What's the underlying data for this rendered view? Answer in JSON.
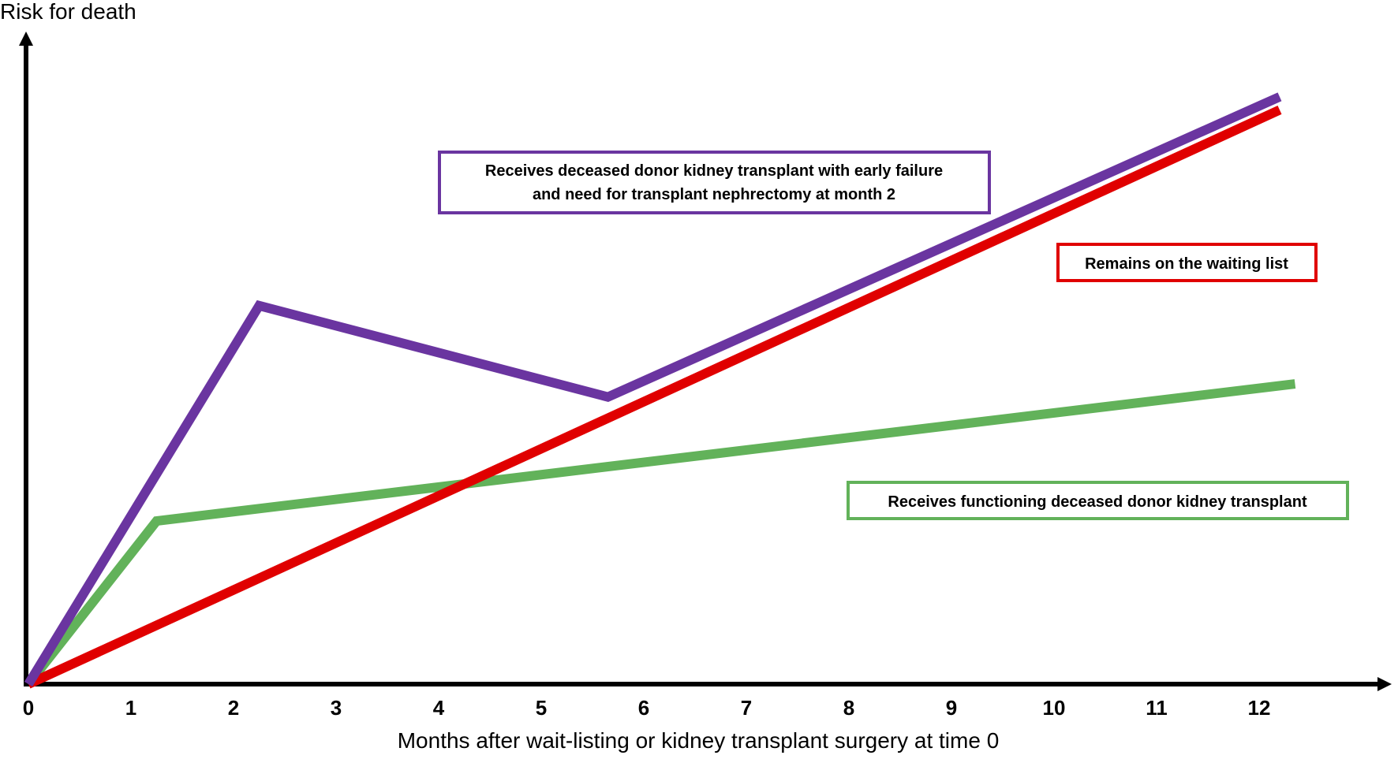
{
  "chart_data": {
    "type": "line",
    "title": "",
    "xlabel": "Months after wait-listing or kidney transplant surgery at time 0",
    "ylabel": "Risk for death",
    "xlim": [
      0,
      13
    ],
    "ylim": [
      0,
      100
    ],
    "x_ticks": [
      "0",
      "1",
      "2",
      "3",
      "4",
      "5",
      "6",
      "7",
      "8",
      "9",
      "10",
      "11",
      "12"
    ],
    "grid": false,
    "series": [
      {
        "name": "Receives deceased donor kidney transplant with early failure and need for transplant nephrectomy at month 2",
        "color": "#6a35a0",
        "points": [
          [
            0,
            0
          ],
          [
            2.25,
            58
          ],
          [
            5.65,
            44
          ],
          [
            12.2,
            90
          ]
        ]
      },
      {
        "name": "Remains on the waiting list",
        "color": "#e00000",
        "points": [
          [
            0,
            0
          ],
          [
            12.2,
            88
          ]
        ]
      },
      {
        "name": "Receives functioning deceased donor kidney transplant",
        "color": "#62b25a",
        "points": [
          [
            0,
            0
          ],
          [
            1.25,
            25
          ],
          [
            12.35,
            46
          ]
        ]
      }
    ],
    "annotations": [
      {
        "text_lines": [
          "Receives deceased donor kidney transplant with early failure",
          "and need for transplant nephrectomy at month 2"
        ],
        "color": "#6a35a0"
      },
      {
        "text_lines": [
          "Remains on the waiting list"
        ],
        "color": "#e00000"
      },
      {
        "text_lines": [
          "Receives functioning deceased donor kidney transplant"
        ],
        "color": "#62b25a"
      }
    ]
  }
}
